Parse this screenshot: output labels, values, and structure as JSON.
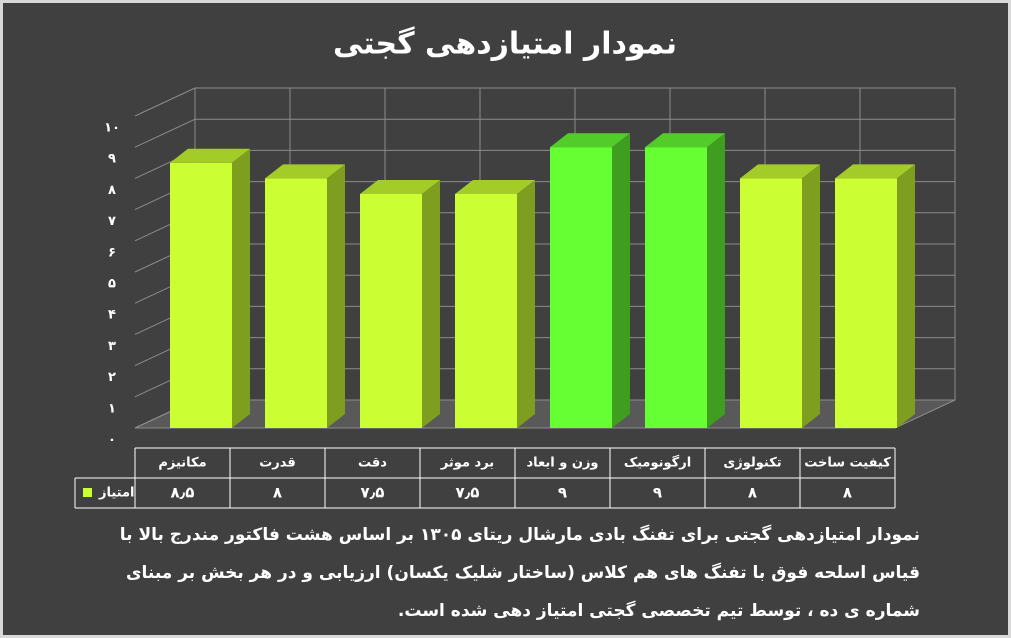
{
  "chart_data": {
    "type": "bar3d",
    "title": "نمودار امتیازدهی گجتی",
    "categories": [
      "مکانیزم",
      "قدرت",
      "دقت",
      "برد موثر",
      "وزن و ابعاد",
      "ارگونومیک",
      "تکنولوژی",
      "کیفیت ساخت"
    ],
    "series": [
      {
        "name": "امتیاز",
        "color": "#ccff33",
        "colors": [
          "#ccff33",
          "#ccff33",
          "#ccff33",
          "#ccff33",
          "#66ff33",
          "#66ff33",
          "#ccff33",
          "#ccff33"
        ],
        "values": [
          8.5,
          8,
          7.5,
          7.5,
          9,
          9,
          8,
          8
        ],
        "value_labels": [
          "۸٫۵",
          "۸",
          "۷٫۵",
          "۷٫۵",
          "۹",
          "۹",
          "۸",
          "۸"
        ]
      }
    ],
    "ylim": [
      0,
      10
    ],
    "yticks": [
      {
        "value": 0,
        "label": "۰"
      },
      {
        "value": 1,
        "label": "۱"
      },
      {
        "value": 2,
        "label": "۲"
      },
      {
        "value": 3,
        "label": "۳"
      },
      {
        "value": 4,
        "label": "۴"
      },
      {
        "value": 5,
        "label": "۵"
      },
      {
        "value": 6,
        "label": "۶"
      },
      {
        "value": 7,
        "label": "۷"
      },
      {
        "value": 8,
        "label": "۸"
      },
      {
        "value": 9,
        "label": "۹"
      },
      {
        "value": 10,
        "label": "۱۰"
      }
    ],
    "grid": true,
    "annotation": "نمودار امتیازدهی گجتی برای تفنگ بادی مارشال ریتای ۱۳۰۵ بر اساس هشت فاکتور مندرج بالا با قیاس اسلحه فوق با تفنگ های هم کلاس (ساختار شلیک یکسان) ارزیابی و در هر بخش بر مبنای شماره ی ده ، توسط تیم تخصصی گجتی امتیاز دهی شده است."
  }
}
